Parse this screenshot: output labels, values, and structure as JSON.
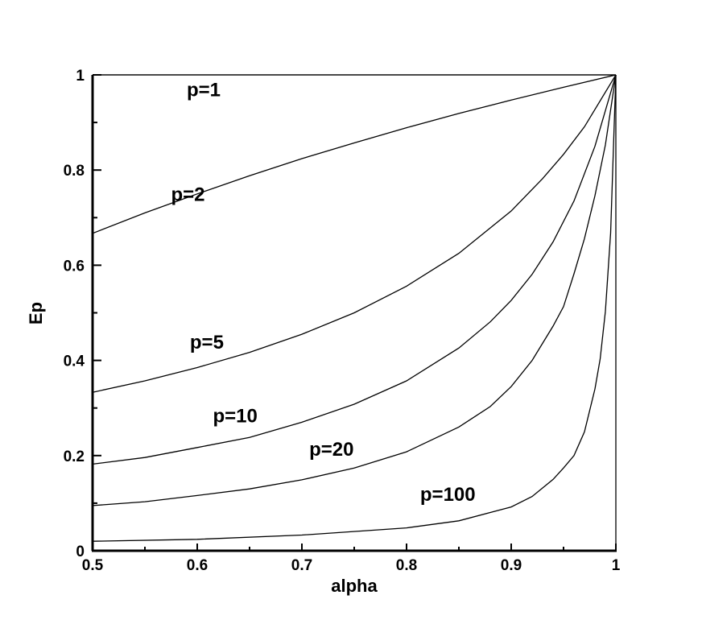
{
  "chart_data": {
    "type": "line",
    "xlabel": "alpha",
    "ylabel": "Ep",
    "xlim": [
      0.5,
      1.0
    ],
    "ylim": [
      0,
      1
    ],
    "xticks": [
      "0.5",
      "0.6",
      "0.7",
      "0.8",
      "0.9",
      "1"
    ],
    "yticks": [
      "0",
      "0.2",
      "0.4",
      "0.6",
      "0.8",
      "1"
    ],
    "grid": false,
    "series": [
      {
        "name": "p=1",
        "p": 1,
        "x": [
          0.5,
          0.55,
          0.6,
          0.65,
          0.7,
          0.75,
          0.8,
          0.85,
          0.9,
          0.95,
          1.0
        ],
        "y": [
          1,
          1,
          1,
          1,
          1,
          1,
          1,
          1,
          1,
          1,
          1
        ]
      },
      {
        "name": "p=2",
        "p": 2,
        "x": [
          0.5,
          0.55,
          0.6,
          0.65,
          0.7,
          0.75,
          0.8,
          0.85,
          0.9,
          0.95,
          1.0
        ],
        "y": [
          0.667,
          0.71,
          0.75,
          0.788,
          0.824,
          0.857,
          0.889,
          0.919,
          0.947,
          0.974,
          1.0
        ]
      },
      {
        "name": "p=5",
        "p": 5,
        "x": [
          0.5,
          0.55,
          0.6,
          0.65,
          0.7,
          0.75,
          0.8,
          0.85,
          0.9,
          0.93,
          0.95,
          0.97,
          1.0
        ],
        "y": [
          0.333,
          0.357,
          0.385,
          0.417,
          0.455,
          0.5,
          0.556,
          0.625,
          0.714,
          0.782,
          0.833,
          0.891,
          1.0
        ]
      },
      {
        "name": "p=10",
        "p": 10,
        "x": [
          0.5,
          0.55,
          0.6,
          0.65,
          0.7,
          0.75,
          0.8,
          0.85,
          0.88,
          0.9,
          0.92,
          0.94,
          0.96,
          0.98,
          1.0
        ],
        "y": [
          0.182,
          0.196,
          0.217,
          0.238,
          0.27,
          0.308,
          0.357,
          0.426,
          0.481,
          0.526,
          0.581,
          0.649,
          0.735,
          0.85,
          1.0
        ]
      },
      {
        "name": "p=20",
        "p": 20,
        "x": [
          0.5,
          0.55,
          0.6,
          0.65,
          0.7,
          0.75,
          0.8,
          0.85,
          0.88,
          0.9,
          0.92,
          0.94,
          0.95,
          0.96,
          0.97,
          0.98,
          0.99,
          1.0
        ],
        "y": [
          0.095,
          0.103,
          0.116,
          0.13,
          0.149,
          0.174,
          0.208,
          0.26,
          0.303,
          0.345,
          0.4,
          0.472,
          0.513,
          0.582,
          0.656,
          0.746,
          0.853,
          1.0
        ]
      },
      {
        "name": "p=100",
        "p": 100,
        "x": [
          0.5,
          0.6,
          0.7,
          0.8,
          0.85,
          0.9,
          0.92,
          0.94,
          0.95,
          0.96,
          0.97,
          0.98,
          0.985,
          0.99,
          0.995,
          1.0
        ],
        "y": [
          0.02,
          0.024,
          0.033,
          0.048,
          0.063,
          0.092,
          0.114,
          0.15,
          0.174,
          0.2,
          0.25,
          0.34,
          0.403,
          0.503,
          0.668,
          1.0
        ]
      }
    ],
    "annotations": [
      {
        "text": "p=1",
        "x": 0.59,
        "y": 0.955
      },
      {
        "text": "p=2",
        "x": 0.575,
        "y": 0.735
      },
      {
        "text": "p=5",
        "x": 0.593,
        "y": 0.425
      },
      {
        "text": "p=10",
        "x": 0.615,
        "y": 0.27
      },
      {
        "text": "p=20",
        "x": 0.707,
        "y": 0.2
      },
      {
        "text": "p=100",
        "x": 0.813,
        "y": 0.105
      }
    ]
  }
}
